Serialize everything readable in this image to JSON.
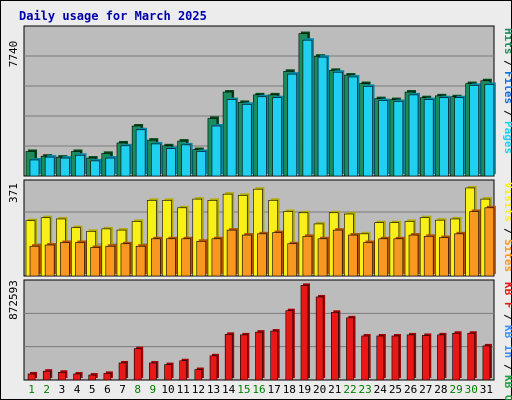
{
  "title": "Daily usage for March 2025",
  "colors": {
    "frame_bg": "#ececec",
    "plot_bg": "#bcbcbc",
    "title": "#0000aa",
    "pages": "#1c8c5c",
    "files": "#1070e0",
    "hits": "#20d0f0",
    "visits": "#f8f018",
    "sites": "#f89820",
    "kb_out": "#20a040",
    "kb_in": "#4090f0",
    "kb_f": "#e81818",
    "weekday_label": "#008000",
    "weekend_label": "#000000"
  },
  "chart_data": [
    {
      "type": "bar",
      "panel": "hits",
      "y_axis_label": "7740",
      "ylim": [
        0,
        7740
      ],
      "legend": [
        {
          "text": "Hits",
          "color": "#1c8c5c"
        },
        {
          "text": "Files",
          "color": "#1070e0"
        },
        {
          "text": "Pages",
          "color": "#20d0f0"
        }
      ],
      "categories": [
        "1",
        "2",
        "3",
        "4",
        "5",
        "6",
        "7",
        "8",
        "9",
        "10",
        "11",
        "12",
        "13",
        "14",
        "15",
        "16",
        "17",
        "18",
        "19",
        "20",
        "21",
        "22",
        "23",
        "24",
        "25",
        "26",
        "27",
        "28",
        "29",
        "30",
        "31"
      ],
      "series": [
        {
          "name": "Hits",
          "values": [
            1300,
            1050,
            1000,
            1300,
            950,
            1200,
            1750,
            2650,
            1900,
            1600,
            1850,
            1400,
            3050,
            4450,
            3900,
            4300,
            4300,
            5550,
            7550,
            6350,
            5600,
            5350,
            4900,
            4100,
            4050,
            4450,
            4150,
            4250,
            4200,
            4900,
            5050
          ]
        },
        {
          "name": "Pages",
          "values": [
            850,
            1000,
            950,
            1100,
            800,
            950,
            1600,
            2450,
            1700,
            1450,
            1650,
            1300,
            2650,
            4050,
            3800,
            4200,
            4150,
            5400,
            7200,
            6300,
            5500,
            5250,
            4750,
            4000,
            3950,
            4300,
            4050,
            4150,
            4150,
            4800,
            4850
          ]
        }
      ]
    },
    {
      "type": "bar",
      "panel": "visits",
      "y_axis_label": "371",
      "ylim": [
        0,
        371
      ],
      "legend": [
        {
          "text": "Visits",
          "color": "#f8f018"
        },
        {
          "text": "Sites",
          "color": "#f89820"
        }
      ],
      "categories": [
        "1",
        "2",
        "3",
        "4",
        "5",
        "6",
        "7",
        "8",
        "9",
        "10",
        "11",
        "12",
        "13",
        "14",
        "15",
        "16",
        "17",
        "18",
        "19",
        "20",
        "21",
        "22",
        "23",
        "24",
        "25",
        "26",
        "27",
        "28",
        "29",
        "30",
        "31"
      ],
      "series": [
        {
          "name": "Visits",
          "values": [
            223,
            235,
            230,
            195,
            180,
            190,
            185,
            220,
            305,
            305,
            275,
            310,
            305,
            330,
            325,
            350,
            305,
            260,
            255,
            210,
            255,
            250,
            170,
            215,
            215,
            220,
            235,
            225,
            230,
            355,
            310
          ]
        },
        {
          "name": "Sites",
          "values": [
            120,
            125,
            135,
            135,
            115,
            120,
            130,
            120,
            150,
            150,
            150,
            140,
            150,
            185,
            165,
            170,
            175,
            130,
            160,
            150,
            185,
            165,
            135,
            150,
            150,
            165,
            160,
            155,
            170,
            260,
            275
          ]
        }
      ]
    },
    {
      "type": "bar",
      "panel": "kbytes",
      "y_axis_label": "872593",
      "ylim": [
        0,
        872593
      ],
      "legend": [
        {
          "text": "KB F",
          "color": "#e81818"
        },
        {
          "text": "KB In",
          "color": "#4090f0"
        },
        {
          "text": "KB Out",
          "color": "#20a040"
        }
      ],
      "categories": [
        "1",
        "2",
        "3",
        "4",
        "5",
        "6",
        "7",
        "8",
        "9",
        "10",
        "11",
        "12",
        "13",
        "14",
        "15",
        "16",
        "17",
        "18",
        "19",
        "20",
        "21",
        "22",
        "23",
        "24",
        "25",
        "26",
        "27",
        "28",
        "29",
        "30",
        "31"
      ],
      "series": [
        {
          "name": "KB F",
          "values": [
            55000,
            80000,
            70000,
            55000,
            45000,
            60000,
            155000,
            285000,
            155000,
            140000,
            175000,
            95000,
            220000,
            415000,
            410000,
            435000,
            445000,
            630000,
            860000,
            755000,
            615000,
            565000,
            400000,
            400000,
            400000,
            410000,
            405000,
            410000,
            425000,
            425000,
            310000
          ]
        }
      ]
    }
  ]
}
